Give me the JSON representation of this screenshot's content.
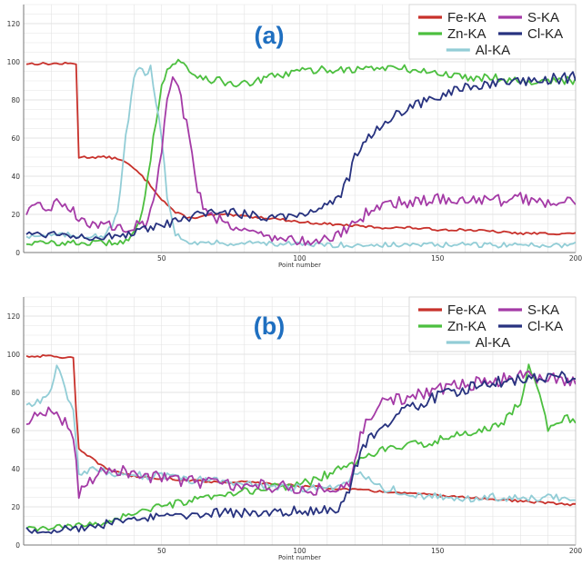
{
  "colors": {
    "Fe-KA": "#c8312b",
    "Zn-KA": "#4cbf3f",
    "Al-KA": "#92cdd6",
    "S-KA": "#a43aa6",
    "Cl-KA": "#27327f",
    "panel_label": "#1f6fc0",
    "grid": "#e3e3e3"
  },
  "chart_data": [
    {
      "type": "line",
      "title": "(a)",
      "xlabel": "Point number",
      "ylabel": "",
      "xlim": [
        0,
        200
      ],
      "ylim": [
        0,
        130
      ],
      "xticks": [
        50,
        100,
        150,
        200
      ],
      "yticks": [
        0,
        20,
        40,
        60,
        80,
        100,
        120
      ],
      "grid": true,
      "legend": "top-right",
      "series": [
        {
          "name": "Fe-KA",
          "x": [
            0,
            19,
            20,
            24,
            30,
            35,
            40,
            45,
            50,
            55,
            60,
            65,
            70,
            80,
            90,
            100,
            110,
            120,
            130,
            140,
            150,
            160,
            170,
            180,
            190,
            200
          ],
          "values": [
            99,
            99,
            50,
            50,
            50,
            49,
            44,
            37,
            28,
            21,
            18,
            19,
            20,
            19,
            18,
            16,
            15,
            14,
            13,
            13,
            12,
            12,
            11,
            10,
            10,
            10
          ]
        },
        {
          "name": "Zn-KA",
          "x": [
            0,
            30,
            38,
            42,
            45,
            48,
            50,
            52,
            54,
            55,
            58,
            60,
            65,
            70,
            80,
            90,
            100,
            110,
            120,
            130,
            140,
            150,
            160,
            170,
            180,
            190,
            200
          ],
          "values": [
            5,
            5,
            6,
            15,
            40,
            70,
            88,
            95,
            99,
            100,
            99,
            95,
            92,
            90,
            88,
            92,
            95,
            96,
            96,
            97,
            96,
            94,
            92,
            92,
            90,
            90,
            90
          ]
        },
        {
          "name": "Al-KA",
          "x": [
            0,
            30,
            34,
            37,
            40,
            42,
            44,
            46,
            48,
            50,
            52,
            55,
            58,
            60,
            65,
            70,
            80,
            90,
            100,
            110,
            120,
            130,
            140,
            150,
            160,
            170,
            180,
            190,
            200
          ],
          "values": [
            9,
            9,
            20,
            60,
            90,
            98,
            95,
            96,
            80,
            58,
            30,
            10,
            7,
            6,
            5,
            5,
            5,
            5,
            4,
            4,
            4,
            4,
            4,
            4,
            4,
            4,
            4,
            4,
            4
          ]
        },
        {
          "name": "S-KA",
          "x": [
            0,
            5,
            10,
            15,
            20,
            25,
            30,
            35,
            40,
            45,
            48,
            50,
            52,
            54,
            55,
            57,
            60,
            62,
            65,
            70,
            80,
            90,
            100,
            110,
            115,
            120,
            125,
            130,
            140,
            150,
            160,
            170,
            180,
            190,
            200
          ],
          "values": [
            20,
            23,
            25,
            26,
            18,
            15,
            14,
            13,
            14,
            16,
            30,
            55,
            80,
            95,
            93,
            80,
            60,
            40,
            25,
            18,
            12,
            8,
            6,
            7,
            10,
            15,
            22,
            25,
            27,
            28,
            28,
            27,
            28,
            27,
            28
          ]
        },
        {
          "name": "Cl-KA",
          "x": [
            0,
            10,
            20,
            30,
            40,
            50,
            60,
            70,
            80,
            90,
            100,
            105,
            110,
            115,
            118,
            120,
            123,
            125,
            130,
            140,
            150,
            160,
            170,
            180,
            190,
            200
          ],
          "values": [
            10,
            10,
            9,
            8,
            10,
            14,
            18,
            22,
            20,
            19,
            20,
            22,
            26,
            30,
            40,
            50,
            56,
            60,
            68,
            76,
            82,
            86,
            88,
            89,
            91,
            92
          ]
        }
      ]
    },
    {
      "type": "line",
      "title": "(b)",
      "xlabel": "Point number",
      "ylabel": "",
      "xlim": [
        0,
        200
      ],
      "ylim": [
        0,
        130
      ],
      "xticks": [
        50,
        100,
        150,
        200
      ],
      "yticks": [
        0,
        20,
        40,
        60,
        80,
        100,
        120
      ],
      "grid": true,
      "legend": "top-right",
      "series": [
        {
          "name": "Fe-KA",
          "x": [
            0,
            10,
            18,
            19,
            20,
            25,
            30,
            35,
            40,
            50,
            60,
            70,
            80,
            90,
            100,
            110,
            120,
            130,
            140,
            150,
            160,
            170,
            180,
            190,
            200
          ],
          "values": [
            99,
            99,
            98,
            70,
            50,
            45,
            40,
            38,
            36,
            35,
            34,
            33,
            33,
            32,
            31,
            30,
            29,
            28,
            27,
            26,
            25,
            24,
            23,
            22,
            21
          ]
        },
        {
          "name": "Zn-KA",
          "x": [
            0,
            10,
            20,
            30,
            40,
            50,
            60,
            70,
            80,
            90,
            100,
            105,
            110,
            115,
            120,
            125,
            130,
            140,
            150,
            160,
            170,
            175,
            180,
            183,
            186,
            190,
            195,
            200
          ],
          "values": [
            8,
            9,
            10,
            12,
            17,
            20,
            23,
            25,
            28,
            30,
            32,
            34,
            37,
            40,
            43,
            47,
            50,
            52,
            55,
            58,
            62,
            66,
            75,
            95,
            85,
            60,
            66,
            66
          ]
        },
        {
          "name": "Al-KA",
          "x": [
            0,
            5,
            10,
            12,
            15,
            18,
            20,
            25,
            30,
            40,
            50,
            60,
            70,
            80,
            90,
            100,
            110,
            115,
            120,
            125,
            130,
            140,
            150,
            160,
            170,
            180,
            190,
            200
          ],
          "values": [
            72,
            75,
            80,
            95,
            82,
            70,
            35,
            40,
            38,
            37,
            36,
            34,
            34,
            32,
            31,
            30,
            29,
            31,
            38,
            36,
            30,
            27,
            25,
            24,
            25,
            24,
            25,
            25
          ]
        },
        {
          "name": "S-KA",
          "x": [
            0,
            5,
            10,
            15,
            18,
            20,
            25,
            30,
            40,
            50,
            60,
            70,
            80,
            90,
            100,
            110,
            118,
            120,
            122,
            125,
            130,
            140,
            150,
            160,
            170,
            180,
            190,
            200
          ],
          "values": [
            60,
            68,
            70,
            65,
            58,
            28,
            35,
            40,
            38,
            35,
            34,
            32,
            31,
            31,
            30,
            29,
            30,
            44,
            58,
            68,
            74,
            78,
            82,
            84,
            86,
            88,
            87,
            86
          ]
        },
        {
          "name": "Cl-KA",
          "x": [
            0,
            10,
            20,
            30,
            40,
            50,
            60,
            70,
            80,
            90,
            100,
            110,
            115,
            118,
            120,
            122,
            125,
            130,
            140,
            150,
            160,
            170,
            180,
            190,
            200
          ],
          "values": [
            8,
            8,
            9,
            11,
            13,
            15,
            16,
            17,
            17,
            17,
            18,
            18,
            20,
            30,
            40,
            48,
            55,
            62,
            72,
            78,
            82,
            85,
            87,
            88,
            88
          ]
        }
      ]
    }
  ]
}
